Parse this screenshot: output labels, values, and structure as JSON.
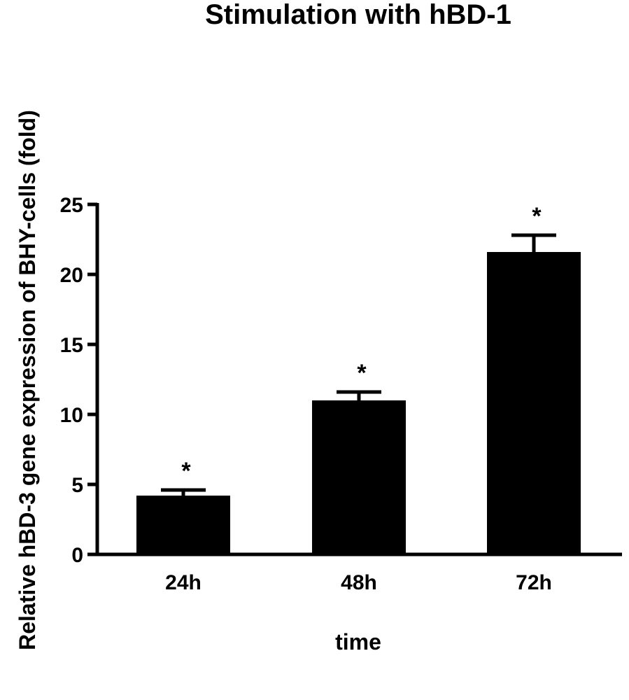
{
  "chart_data": {
    "type": "bar",
    "title": "Stimulation with hBD-1",
    "xlabel": "time",
    "ylabel": "Relative hBD-3 gene expression of BHY-cells (fold)",
    "categories": [
      "24h",
      "48h",
      "72h"
    ],
    "values": [
      4.2,
      11.0,
      21.6
    ],
    "error": [
      0.4,
      0.6,
      1.2
    ],
    "annotations": [
      "*",
      "*",
      "*"
    ],
    "ylim": [
      0,
      25
    ],
    "yticks": [
      0,
      5,
      10,
      15,
      20,
      25
    ],
    "grid": false,
    "bar_color": "#000000"
  }
}
